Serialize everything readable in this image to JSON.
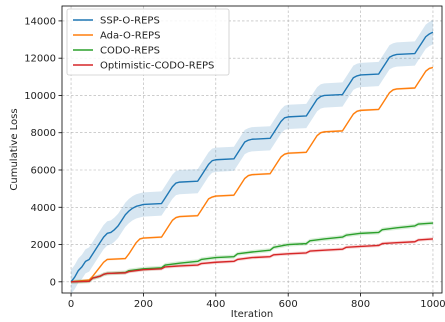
{
  "chart_data": {
    "type": "line",
    "title": "",
    "xlabel": "Iteration",
    "ylabel": "Cumulative Loss",
    "xlim": [
      -25,
      1025
    ],
    "ylim": [
      -600,
      14800
    ],
    "xticks": [
      0,
      200,
      400,
      600,
      800,
      1000
    ],
    "yticks": [
      0,
      2000,
      4000,
      6000,
      8000,
      10000,
      12000,
      14000
    ],
    "grid": true,
    "legend_position": "top-left",
    "series": [
      {
        "name": "SSP-O-REPS",
        "color": "#1f77b4",
        "x": [
          0,
          10,
          20,
          30,
          40,
          50,
          60,
          70,
          80,
          90,
          100,
          110,
          120,
          130,
          140,
          150,
          160,
          170,
          180,
          190,
          200,
          250,
          260,
          270,
          280,
          290,
          300,
          350,
          360,
          370,
          380,
          390,
          400,
          450,
          460,
          470,
          480,
          490,
          500,
          550,
          560,
          570,
          580,
          590,
          600,
          650,
          660,
          670,
          680,
          690,
          700,
          750,
          760,
          770,
          780,
          790,
          800,
          850,
          860,
          870,
          880,
          890,
          900,
          950,
          960,
          970,
          980,
          990,
          1000
        ],
        "y": [
          0,
          250,
          600,
          800,
          1100,
          1200,
          1500,
          1800,
          2100,
          2400,
          2600,
          2650,
          2800,
          3000,
          3300,
          3600,
          3800,
          3950,
          4050,
          4100,
          4150,
          4200,
          4500,
          4800,
          5100,
          5300,
          5350,
          5400,
          5700,
          6000,
          6300,
          6500,
          6550,
          6600,
          6900,
          7200,
          7500,
          7600,
          7650,
          7700,
          8000,
          8300,
          8600,
          8800,
          8850,
          8900,
          9200,
          9500,
          9800,
          9950,
          10000,
          10050,
          10350,
          10650,
          10950,
          11050,
          11100,
          11150,
          11450,
          11750,
          12050,
          12150,
          12200,
          12250,
          12550,
          12850,
          13150,
          13300,
          13400
        ],
        "band": 650
      },
      {
        "name": "Ada-O-REPS",
        "color": "#ff7f0e",
        "x": [
          0,
          10,
          20,
          30,
          40,
          50,
          60,
          70,
          80,
          90,
          100,
          150,
          160,
          170,
          180,
          190,
          200,
          250,
          260,
          270,
          280,
          290,
          300,
          350,
          360,
          370,
          380,
          390,
          400,
          450,
          460,
          470,
          480,
          490,
          500,
          550,
          560,
          570,
          580,
          590,
          600,
          650,
          660,
          670,
          680,
          690,
          700,
          750,
          760,
          770,
          780,
          790,
          800,
          850,
          860,
          870,
          880,
          890,
          900,
          950,
          960,
          970,
          980,
          990,
          1000
        ],
        "y": [
          0,
          20,
          40,
          60,
          80,
          100,
          300,
          550,
          800,
          1050,
          1200,
          1250,
          1500,
          1800,
          2100,
          2300,
          2350,
          2400,
          2700,
          3000,
          3300,
          3450,
          3500,
          3550,
          3850,
          4150,
          4450,
          4550,
          4600,
          4650,
          4950,
          5250,
          5550,
          5700,
          5750,
          5800,
          6100,
          6400,
          6700,
          6850,
          6900,
          6950,
          7250,
          7550,
          7850,
          8000,
          8050,
          8100,
          8400,
          8700,
          9000,
          9150,
          9200,
          9250,
          9550,
          9850,
          10150,
          10300,
          10350,
          10400,
          10700,
          11000,
          11300,
          11450,
          11500
        ],
        "band": 60
      },
      {
        "name": "CODO-REPS",
        "color": "#2ca02c",
        "x": [
          0,
          50,
          60,
          70,
          80,
          90,
          100,
          150,
          160,
          200,
          250,
          260,
          300,
          350,
          360,
          400,
          450,
          460,
          500,
          550,
          560,
          600,
          650,
          660,
          700,
          750,
          760,
          800,
          850,
          860,
          900,
          950,
          960,
          1000
        ],
        "y": [
          0,
          30,
          200,
          250,
          300,
          400,
          450,
          500,
          600,
          700,
          750,
          900,
          1000,
          1100,
          1200,
          1300,
          1350,
          1500,
          1600,
          1700,
          1850,
          2000,
          2050,
          2200,
          2300,
          2400,
          2500,
          2600,
          2650,
          2800,
          2900,
          3000,
          3100,
          3150
        ],
        "band": 110
      },
      {
        "name": "Optimistic-CODO-REPS",
        "color": "#d62728",
        "x": [
          0,
          50,
          60,
          70,
          80,
          90,
          100,
          150,
          160,
          200,
          250,
          260,
          300,
          350,
          360,
          400,
          450,
          460,
          500,
          550,
          560,
          600,
          650,
          660,
          700,
          750,
          760,
          800,
          850,
          860,
          900,
          950,
          960,
          1000
        ],
        "y": [
          0,
          30,
          200,
          250,
          300,
          400,
          450,
          480,
          550,
          650,
          700,
          800,
          850,
          900,
          980,
          1050,
          1100,
          1200,
          1300,
          1350,
          1450,
          1500,
          1550,
          1650,
          1700,
          1750,
          1850,
          1900,
          1950,
          2050,
          2100,
          2150,
          2250,
          2300
        ],
        "band": 90
      }
    ]
  }
}
